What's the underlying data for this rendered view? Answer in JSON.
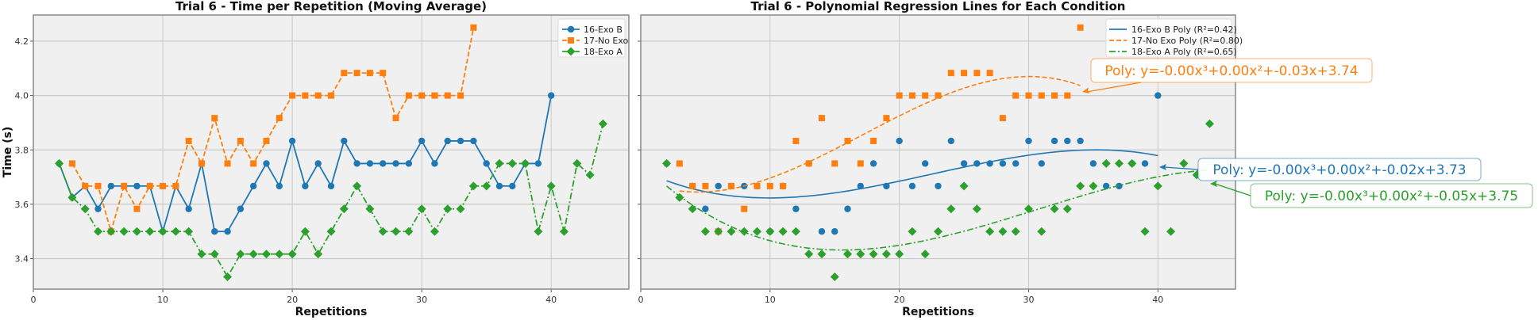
{
  "chart_data": [
    {
      "type": "line",
      "title": "Trial 6 - Time per Repetition (Moving Average)",
      "xlabel": "Repetitions",
      "ylabel": "Time (s)",
      "xlim": [
        0,
        46
      ],
      "ylim": [
        3.288,
        4.296
      ],
      "xticks": [
        0,
        10,
        20,
        30,
        40
      ],
      "yticks": [
        3.4,
        3.6,
        3.8,
        4.0,
        4.2
      ],
      "ytick_labels": [
        "3.4",
        "3.6",
        "3.8",
        "4.0",
        "4.2"
      ],
      "grid": true,
      "legend": "top-right",
      "series": [
        {
          "name": "16-Exo B",
          "color": "#1f77b4",
          "marker": "circle",
          "linestyle": "solid",
          "x": [
            2,
            3,
            4,
            5,
            6,
            7,
            8,
            9,
            10,
            11,
            12,
            13,
            14,
            15,
            16,
            17,
            18,
            19,
            20,
            21,
            22,
            23,
            24,
            25,
            26,
            27,
            28,
            29,
            30,
            31,
            32,
            33,
            34,
            35,
            36,
            37,
            38,
            39,
            40
          ],
          "y": [
            3.75,
            3.625,
            3.667,
            3.583,
            3.667,
            3.667,
            3.667,
            3.667,
            3.5,
            3.667,
            3.583,
            3.75,
            3.5,
            3.5,
            3.583,
            3.667,
            3.75,
            3.667,
            3.833,
            3.667,
            3.75,
            3.667,
            3.833,
            3.75,
            3.75,
            3.75,
            3.75,
            3.75,
            3.833,
            3.75,
            3.833,
            3.833,
            3.833,
            3.75,
            3.667,
            3.667,
            3.75,
            3.75,
            4.0
          ]
        },
        {
          "name": "17-No Exo",
          "color": "#ff7f0e",
          "marker": "square",
          "linestyle": "dashed",
          "x": [
            3,
            4,
            5,
            6,
            7,
            8,
            9,
            10,
            11,
            12,
            13,
            14,
            15,
            16,
            17,
            18,
            19,
            20,
            21,
            22,
            23,
            24,
            25,
            26,
            27,
            28,
            29,
            30,
            31,
            32,
            33,
            34
          ],
          "y": [
            3.75,
            3.667,
            3.667,
            3.5,
            3.667,
            3.583,
            3.667,
            3.667,
            3.667,
            3.833,
            3.75,
            3.917,
            3.75,
            3.833,
            3.75,
            3.833,
            3.917,
            4.0,
            4.0,
            4.0,
            4.0,
            4.083,
            4.083,
            4.083,
            4.083,
            3.917,
            4.0,
            4.0,
            4.0,
            4.0,
            4.0,
            4.25
          ]
        },
        {
          "name": "18-Exo A",
          "color": "#2ca02c",
          "marker": "diamond",
          "linestyle": "dashdot",
          "x": [
            2,
            3,
            4,
            5,
            6,
            7,
            8,
            9,
            10,
            11,
            12,
            13,
            14,
            15,
            16,
            17,
            18,
            19,
            20,
            21,
            22,
            23,
            24,
            25,
            26,
            27,
            28,
            29,
            30,
            31,
            32,
            33,
            34,
            35,
            36,
            37,
            38,
            39,
            40,
            41,
            42,
            43,
            44
          ],
          "y": [
            3.75,
            3.625,
            3.583,
            3.5,
            3.5,
            3.5,
            3.5,
            3.5,
            3.5,
            3.5,
            3.5,
            3.417,
            3.417,
            3.333,
            3.417,
            3.417,
            3.417,
            3.417,
            3.417,
            3.5,
            3.417,
            3.5,
            3.583,
            3.667,
            3.583,
            3.5,
            3.5,
            3.5,
            3.583,
            3.5,
            3.583,
            3.583,
            3.667,
            3.667,
            3.75,
            3.75,
            3.75,
            3.5,
            3.667,
            3.5,
            3.75,
            3.708,
            3.896
          ]
        }
      ]
    },
    {
      "type": "scatter",
      "title": "Trial 6 - Polynomial Regression Lines for Each Condition",
      "xlabel": "Repetitions",
      "xlim": [
        0,
        46
      ],
      "ylim": [
        3.288,
        4.296
      ],
      "xticks": [
        0,
        10,
        20,
        30,
        40
      ],
      "yticks": [
        3.4,
        3.6,
        3.8,
        4.0,
        4.2
      ],
      "grid": true,
      "legend": "top-right",
      "fit": "cubic polynomial",
      "series": [
        {
          "legend": "16-Exo B Poly (R²=0.42)",
          "source_series": 0,
          "color": "#1f77b4",
          "linestyle": "solid",
          "r2": 0.42,
          "annotation": "Poly: y=-0.00x³+0.00x²+-0.02x+3.73"
        },
        {
          "legend": "17-No Exo Poly (R²=0.80)",
          "source_series": 1,
          "color": "#ff7f0e",
          "linestyle": "dashed",
          "r2": 0.8,
          "annotation": "Poly: y=-0.00x³+0.00x²+-0.03x+3.74"
        },
        {
          "legend": "18-Exo A Poly (R²=0.65)",
          "source_series": 2,
          "color": "#2ca02c",
          "linestyle": "dashdot",
          "r2": 0.65,
          "annotation": "Poly: y=-0.00x³+0.00x²+-0.05x+3.75"
        }
      ]
    }
  ]
}
